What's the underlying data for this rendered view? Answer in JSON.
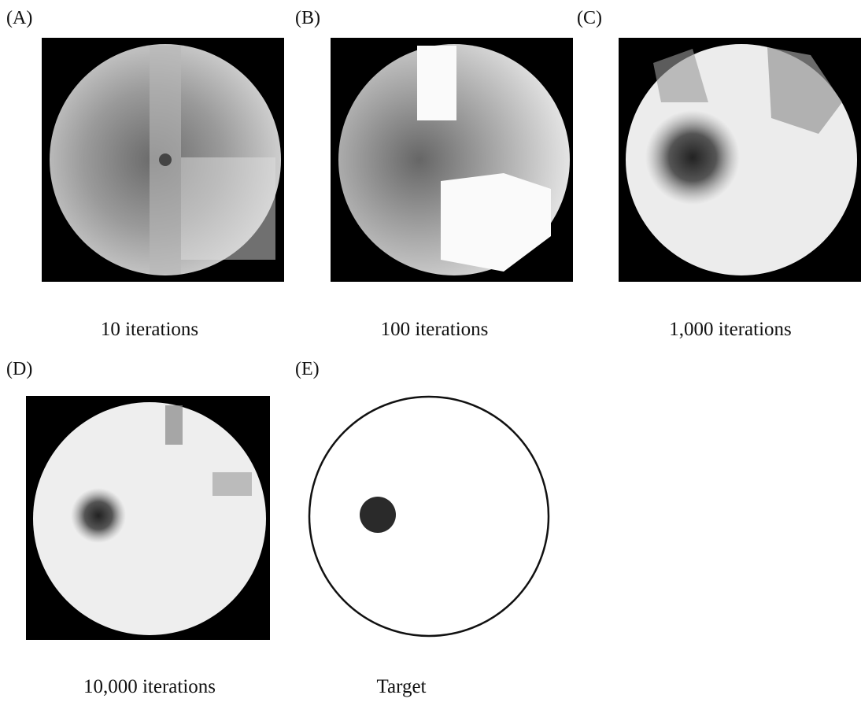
{
  "panels": [
    {
      "label": "(A)",
      "caption": "10 iterations"
    },
    {
      "label": "(B)",
      "caption": "100 iterations"
    },
    {
      "label": "(C)",
      "caption": "1,000 iterations"
    },
    {
      "label": "(D)",
      "caption": "10,000 iterations"
    },
    {
      "label": "(E)",
      "caption": "Target"
    }
  ]
}
